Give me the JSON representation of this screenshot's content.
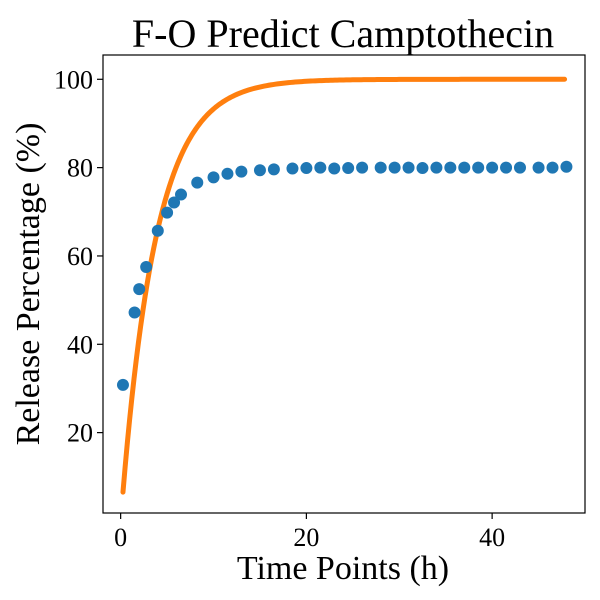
{
  "chart_data": {
    "type": "scatter",
    "title": "F-O Predict Camptothecin",
    "xlabel": "Time Points (h)",
    "ylabel": "Release Percentage (%)",
    "xlim": [
      -1.9,
      50.0
    ],
    "ylim": [
      1.8,
      105.5
    ],
    "xticks": [
      0,
      20,
      40
    ],
    "yticks": [
      20,
      40,
      60,
      80,
      100
    ],
    "grid": false,
    "legend": "none",
    "colors": {
      "observed": "#1f77b4",
      "predicted": "#ff7f0e"
    },
    "series": [
      {
        "kind": "scatter",
        "x": [
          0.25,
          1.5,
          2.0,
          2.75,
          4.0,
          5.0,
          5.75,
          6.5,
          8.25,
          10.0,
          11.5,
          13.0,
          15.0,
          16.5,
          18.5,
          20.0,
          21.5,
          23.0,
          24.5,
          26.0,
          28.0,
          29.5,
          31.0,
          32.5,
          34.0,
          35.5,
          37.0,
          38.5,
          40.0,
          41.5,
          43.0,
          45.0,
          46.5,
          48.0
        ],
        "y": [
          30.8,
          47.2,
          52.5,
          57.5,
          65.7,
          69.8,
          72.1,
          73.9,
          76.6,
          77.8,
          78.6,
          79.1,
          79.4,
          79.6,
          79.8,
          79.9,
          80.0,
          79.8,
          79.9,
          80.0,
          80.0,
          80.0,
          80.0,
          79.9,
          80.0,
          80.0,
          80.0,
          80.0,
          80.0,
          80.0,
          80.0,
          80.0,
          80.0,
          80.2
        ]
      },
      {
        "kind": "line",
        "model": "first-order",
        "x_range": [
          0.25,
          47.8
        ],
        "fmax": 100,
        "k": 0.27
      }
    ]
  }
}
